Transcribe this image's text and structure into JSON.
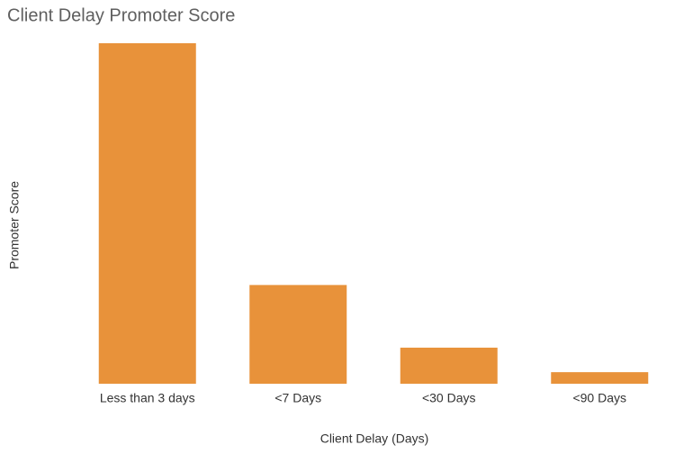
{
  "chart_data": {
    "type": "bar",
    "title": "Client Delay Promoter Score",
    "x_label": "Client Delay (Days)",
    "y_label": "Promoter Score",
    "categories": [
      "Less than 3 days",
      "<7 Days",
      "<30 Days",
      "<90 Days"
    ],
    "values": [
      100,
      29,
      10.6,
      3.4
    ],
    "color": "#e8923a"
  }
}
